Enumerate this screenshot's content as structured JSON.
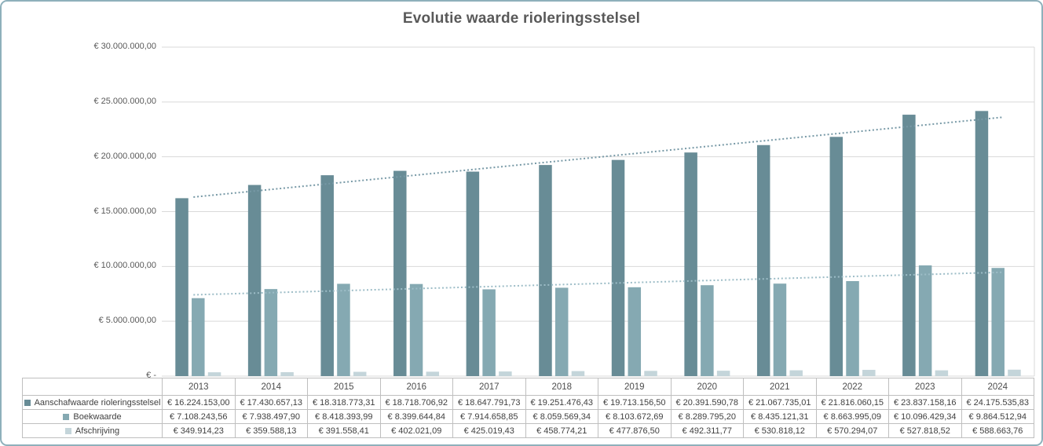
{
  "title": "Evolutie waarde rioleringsstelsel",
  "colors": {
    "series1": "#688c96",
    "series2": "#85a9b2",
    "series3": "#c4d5da",
    "trend1": "#7799a6",
    "trend2": "#9dbdc7",
    "grid": "#d9d9d9",
    "axis_text": "#595959",
    "table_text": "#404040",
    "table_border": "#bfbfbf",
    "chart_border": "#8eb0bb"
  },
  "chart_data": {
    "type": "bar",
    "title": "Evolutie waarde rioleringsstelsel",
    "categories": [
      "2013",
      "2014",
      "2015",
      "2016",
      "2017",
      "2018",
      "2019",
      "2020",
      "2021",
      "2022",
      "2023",
      "2024"
    ],
    "series": [
      {
        "name": "Aanschafwaarde rioleringsstelsel",
        "color": "#688c96",
        "trendline": true,
        "values": [
          16224153.0,
          17430657.13,
          18318773.31,
          18718706.92,
          18647791.73,
          19251476.43,
          19713156.5,
          20391590.78,
          21067735.01,
          21816060.15,
          23837158.16,
          24175535.83
        ],
        "labels": [
          "€ 16.224.153,00",
          "€ 17.430.657,13",
          "€ 18.318.773,31",
          "€ 18.718.706,92",
          "€ 18.647.791,73",
          "€ 19.251.476,43",
          "€ 19.713.156,50",
          "€ 20.391.590,78",
          "€ 21.067.735,01",
          "€ 21.816.060,15",
          "€ 23.837.158,16",
          "€ 24.175.535,83"
        ]
      },
      {
        "name": "Boekwaarde",
        "color": "#85a9b2",
        "trendline": true,
        "values": [
          7108243.56,
          7938497.9,
          8418393.99,
          8399644.84,
          7914658.85,
          8059569.34,
          8103672.69,
          8289795.2,
          8435121.31,
          8663995.09,
          10096429.34,
          9864512.94
        ],
        "labels": [
          "€ 7.108.243,56",
          "€ 7.938.497,90",
          "€ 8.418.393,99",
          "€ 8.399.644,84",
          "€ 7.914.658,85",
          "€ 8.059.569,34",
          "€ 8.103.672,69",
          "€ 8.289.795,20",
          "€ 8.435.121,31",
          "€ 8.663.995,09",
          "€ 10.096.429,34",
          "€ 9.864.512,94"
        ]
      },
      {
        "name": "Afschrijving",
        "color": "#c4d5da",
        "trendline": false,
        "values": [
          349914.23,
          359588.13,
          391558.41,
          402021.09,
          425019.43,
          458774.21,
          477876.5,
          492311.77,
          530818.12,
          570294.07,
          527818.52,
          588663.76
        ],
        "labels": [
          "€ 349.914,23",
          "€ 359.588,13",
          "€ 391.558,41",
          "€ 402.021,09",
          "€ 425.019,43",
          "€ 458.774,21",
          "€ 477.876,50",
          "€ 492.311,77",
          "€ 530.818,12",
          "€ 570.294,07",
          "€ 527.818,52",
          "€ 588.663,76"
        ]
      }
    ],
    "ylim": [
      0,
      30000000
    ],
    "ytick_step": 5000000,
    "ytick_labels": [
      "€ -",
      "€ 5.000.000,00",
      "€ 10.000.000,00",
      "€ 15.000.000,00",
      "€ 20.000.000,00",
      "€ 25.000.000,00",
      "€ 30.000.000,00"
    ],
    "grid": true,
    "legend_position": "data-table-keys",
    "trendline_style": "dotted"
  }
}
